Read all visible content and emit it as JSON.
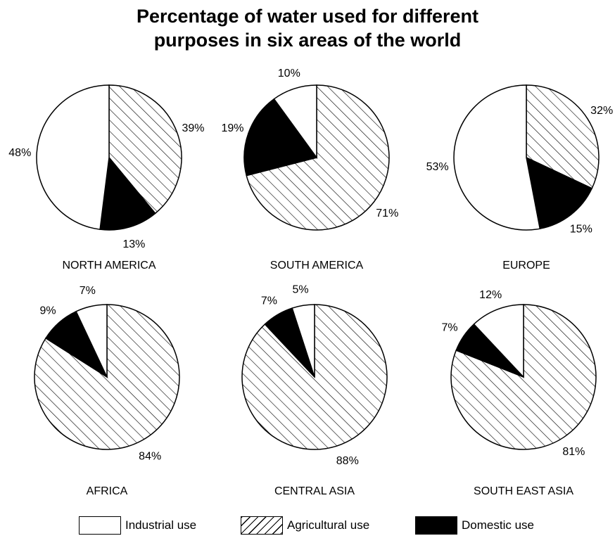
{
  "chart_data": {
    "type": "pie",
    "title": "Percentage of water used for different purposes in six areas of the world",
    "title_lines": [
      "Percentage of water used for different",
      "purposes in six areas of the world"
    ],
    "series_names": [
      "Industrial use",
      "Agricultural use",
      "Domestic use"
    ],
    "series_styles": {
      "Industrial use": "white",
      "Agricultural use": "diagonal-hatch",
      "Domestic use": "black"
    },
    "legend_position": "bottom",
    "pies": [
      {
        "name": "NORTH AMERICA",
        "values": {
          "Industrial use": 48,
          "Agricultural use": 39,
          "Domestic use": 13
        }
      },
      {
        "name": "SOUTH AMERICA",
        "values": {
          "Industrial use": 10,
          "Agricultural use": 71,
          "Domestic use": 19
        }
      },
      {
        "name": "EUROPE",
        "values": {
          "Industrial use": 53,
          "Agricultural use": 32,
          "Domestic use": 15
        }
      },
      {
        "name": "AFRICA",
        "values": {
          "Industrial use": 7,
          "Agricultural use": 84,
          "Domestic use": 9
        }
      },
      {
        "name": "CENTRAL ASIA",
        "values": {
          "Industrial use": 5,
          "Agricultural use": 88,
          "Domestic use": 7
        }
      },
      {
        "name": "SOUTH EAST ASIA",
        "values": {
          "Industrial use": 12,
          "Agricultural use": 81,
          "Domestic use": 7
        }
      }
    ]
  },
  "legend": {
    "industrial_label": "Industrial use",
    "agricultural_label": "Agricultural use",
    "domestic_label": "Domestic use"
  }
}
